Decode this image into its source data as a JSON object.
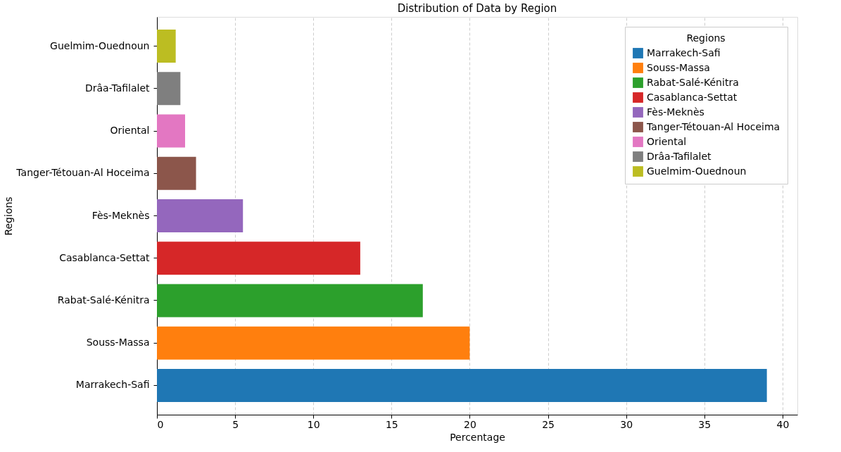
{
  "chart_data": {
    "type": "bar",
    "orientation": "horizontal",
    "title": "Distribution of Data by Region",
    "xlabel": "Percentage",
    "ylabel": "Regions",
    "legend_title": "Regions",
    "categories": [
      "Guelmim-Ouednoun",
      "Drâa-Tafilalet",
      "Oriental",
      "Tanger-Tétouan-Al Hoceima",
      "Fès-Meknès",
      "Casablanca-Settat",
      "Rabat-Salé-Kénitra",
      "Souss-Massa",
      "Marrakech-Safi"
    ],
    "series": [
      {
        "name": "Marrakech-Safi",
        "color": "#1f77b4",
        "values": [
          null,
          null,
          null,
          null,
          null,
          null,
          null,
          null,
          39
        ]
      },
      {
        "name": "Souss-Massa",
        "color": "#ff7f0e",
        "values": [
          null,
          null,
          null,
          null,
          null,
          null,
          null,
          20,
          null
        ]
      },
      {
        "name": "Rabat-Salé-Kénitra",
        "color": "#2ca02c",
        "values": [
          null,
          null,
          null,
          null,
          null,
          null,
          17,
          null,
          null
        ]
      },
      {
        "name": "Casablanca-Settat",
        "color": "#d62728",
        "values": [
          null,
          null,
          null,
          null,
          null,
          13,
          null,
          null,
          null
        ]
      },
      {
        "name": "Fès-Meknès",
        "color": "#9467bd",
        "values": [
          null,
          null,
          null,
          null,
          5.5,
          null,
          null,
          null,
          null
        ]
      },
      {
        "name": "Tanger-Tétouan-Al Hoceima",
        "color": "#8c564b",
        "values": [
          null,
          null,
          null,
          2.5,
          null,
          null,
          null,
          null,
          null
        ]
      },
      {
        "name": "Oriental",
        "color": "#e377c2",
        "values": [
          null,
          null,
          1.8,
          null,
          null,
          null,
          null,
          null,
          null
        ]
      },
      {
        "name": "Drâa-Tafilalet",
        "color": "#7f7f7f",
        "values": [
          null,
          1.5,
          null,
          null,
          null,
          null,
          null,
          null,
          null
        ]
      },
      {
        "name": "Guelmim-Ouednoun",
        "color": "#bcbd22",
        "values": [
          1.2,
          null,
          null,
          null,
          null,
          null,
          null,
          null,
          null
        ]
      }
    ],
    "xlim": [
      0,
      40.95
    ],
    "xticks": [
      0,
      5,
      10,
      15,
      20,
      25,
      30,
      35,
      40
    ],
    "grid": "x",
    "legend": "top right"
  }
}
